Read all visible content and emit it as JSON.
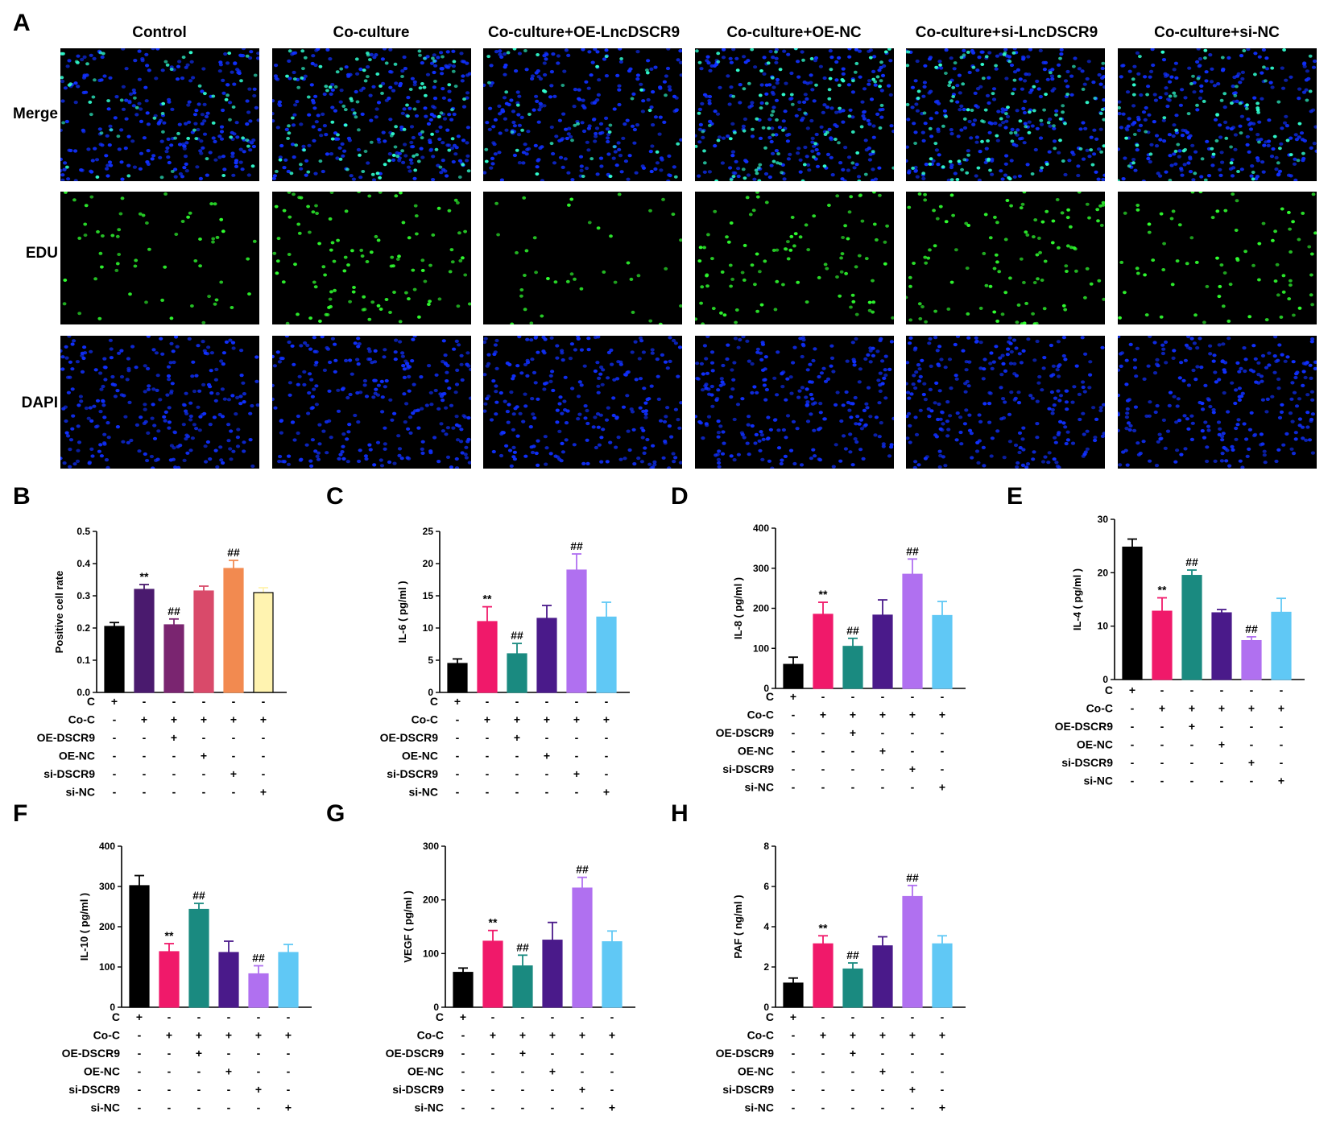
{
  "panel_letters": [
    "A",
    "B",
    "C",
    "D",
    "E",
    "F",
    "G",
    "H"
  ],
  "micrograph": {
    "columns": [
      "Control",
      "Co-culture",
      "Co-culture+OE-LncDSCR9",
      "Co-culture+OE-NC",
      "Co-culture+si-LncDSCR9",
      "Co-culture+si-NC"
    ],
    "rows": [
      "Merge",
      "EDU",
      "DAPI"
    ]
  },
  "colors": {
    "bars": [
      "#000000",
      "#4a1a6e",
      "#7a2570",
      "#d94a6a",
      "#f28a50",
      "#fff3b0"
    ],
    "bars_cytokine": [
      "#000000",
      "#f0196a",
      "#1a8a80",
      "#4a1a8a",
      "#b070f0",
      "#60c8f5"
    ],
    "dapi": "#1030ff",
    "edu": "#30ff30",
    "merge_pos": "#30ffd0"
  },
  "condition_rows": [
    "C",
    "Co-C",
    "OE-DSCR9",
    "OE-NC",
    "si-DSCR9",
    "si-NC"
  ],
  "condition_matrix": [
    [
      "+",
      "-",
      "-",
      "-",
      "-",
      "-"
    ],
    [
      "-",
      "+",
      "+",
      "+",
      "+",
      "+"
    ],
    [
      "-",
      "-",
      "+",
      "-",
      "-",
      "-"
    ],
    [
      "-",
      "-",
      "-",
      "+",
      "-",
      "-"
    ],
    [
      "-",
      "-",
      "-",
      "-",
      "+",
      "-"
    ],
    [
      "-",
      "-",
      "-",
      "-",
      "-",
      "+"
    ]
  ],
  "chart_data": [
    {
      "panel": "B",
      "type": "bar",
      "ylabel": "Positive cell rate",
      "ylim": [
        0,
        0.5
      ],
      "ticks": [
        "0.0",
        "0.1",
        "0.2",
        "0.3",
        "0.4",
        "0.5"
      ],
      "values": [
        0.205,
        0.32,
        0.21,
        0.315,
        0.385,
        0.31
      ],
      "errors": [
        0.012,
        0.015,
        0.018,
        0.015,
        0.025,
        0.015
      ],
      "annotations": [
        "",
        "**",
        "##",
        "",
        "##",
        ""
      ],
      "palette": "bars"
    },
    {
      "panel": "C",
      "type": "bar",
      "ylabel": "IL-6 ( pg/ml )",
      "ylim": [
        0,
        25
      ],
      "ticks": [
        "0",
        "5",
        "10",
        "15",
        "20",
        "25"
      ],
      "values": [
        4.5,
        11,
        6,
        11.5,
        19,
        11.7
      ],
      "errors": [
        0.7,
        2.3,
        1.6,
        2.0,
        2.5,
        2.3
      ],
      "annotations": [
        "",
        "**",
        "##",
        "",
        "##",
        ""
      ],
      "palette": "bars_cytokine"
    },
    {
      "panel": "D",
      "type": "bar",
      "ylabel": "IL-8 ( pg/ml )",
      "ylim": [
        0,
        400
      ],
      "ticks": [
        "0",
        "100",
        "200",
        "300",
        "400"
      ],
      "values": [
        60,
        185,
        105,
        183,
        285,
        182
      ],
      "errors": [
        18,
        30,
        20,
        38,
        38,
        35
      ],
      "annotations": [
        "",
        "**",
        "##",
        "",
        "##",
        ""
      ],
      "palette": "bars_cytokine"
    },
    {
      "panel": "E",
      "type": "bar",
      "ylabel": "IL-4 ( pg/ml )",
      "ylim": [
        0,
        30
      ],
      "ticks": [
        "0",
        "10",
        "20",
        "30"
      ],
      "values": [
        24.8,
        12.8,
        19.5,
        12.5,
        7.3,
        12.6
      ],
      "errors": [
        1.5,
        2.5,
        1.0,
        0.6,
        0.7,
        2.6
      ],
      "annotations": [
        "",
        "**",
        "##",
        "",
        "##",
        ""
      ],
      "palette": "bars_cytokine"
    },
    {
      "panel": "F",
      "type": "bar",
      "ylabel": "IL-10 ( pg/ml )",
      "ylim": [
        0,
        400
      ],
      "ticks": [
        "0",
        "100",
        "200",
        "300",
        "400"
      ],
      "values": [
        302,
        138,
        243,
        136,
        83,
        136
      ],
      "errors": [
        25,
        20,
        15,
        28,
        20,
        20
      ],
      "annotations": [
        "",
        "**",
        "##",
        "",
        "##",
        ""
      ],
      "palette": "bars_cytokine"
    },
    {
      "panel": "G",
      "type": "bar",
      "ylabel": "VEGF ( pg/ml )",
      "ylim": [
        0,
        300
      ],
      "ticks": [
        "0",
        "100",
        "200",
        "300"
      ],
      "values": [
        65,
        123,
        77,
        125,
        222,
        122
      ],
      "errors": [
        8,
        20,
        20,
        33,
        20,
        20
      ],
      "annotations": [
        "",
        "**",
        "##",
        "",
        "##",
        ""
      ],
      "palette": "bars_cytokine"
    },
    {
      "panel": "H",
      "type": "bar",
      "ylabel": "PAF ( ng/ml )",
      "ylim": [
        0,
        8
      ],
      "ticks": [
        "0",
        "2",
        "4",
        "6",
        "8"
      ],
      "values": [
        1.2,
        3.15,
        1.9,
        3.05,
        5.5,
        3.15
      ],
      "errors": [
        0.25,
        0.4,
        0.3,
        0.45,
        0.55,
        0.4
      ],
      "annotations": [
        "",
        "**",
        "##",
        "",
        "##",
        ""
      ],
      "palette": "bars_cytokine"
    }
  ]
}
